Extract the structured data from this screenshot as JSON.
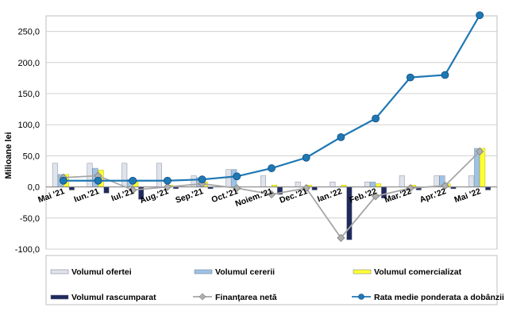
{
  "chart_data": {
    "type": "bar",
    "ylabel": "Milioane lei",
    "ylim": [
      -100,
      275
    ],
    "yticks": [
      250.0,
      200.0,
      150.0,
      100.0,
      50.0,
      0.0,
      -50.0,
      -100.0
    ],
    "ytick_labels": [
      "250,0",
      "200,0",
      "150,0",
      "100,0",
      "50,0",
      "0,0",
      "-50,0",
      "-100,0"
    ],
    "grid": true,
    "legend_position": "bottom",
    "categories": [
      "Mai '21",
      "Iun.'21",
      "Iul.'21",
      "Aug.'21",
      "Sep.'21",
      "Oct.'21",
      "Noiem.'21",
      "Dec.'21",
      "Ian.'22",
      "Feb.'22",
      "Mar.'22",
      "Apr.'22",
      "Mai '22"
    ],
    "series": [
      {
        "name": "Volumul ofertei",
        "type": "bar",
        "color": "#dfe3ec",
        "values": [
          38,
          38,
          38,
          38,
          18,
          28,
          18,
          8,
          8,
          8,
          18,
          18,
          18
        ]
      },
      {
        "name": "Volumul cererii",
        "type": "bar",
        "color": "#9dc3e6",
        "values": [
          20,
          30,
          12,
          0,
          15,
          28,
          0,
          0,
          0,
          8,
          0,
          18,
          62
        ]
      },
      {
        "name": "Volumul comercializat",
        "type": "bar",
        "color": "#ffff33",
        "values": [
          20,
          27,
          8,
          3,
          8,
          0,
          3,
          3,
          3,
          5,
          3,
          5,
          62
        ]
      },
      {
        "name": "Volumul rascumparat",
        "type": "bar",
        "color": "#1f2a5c",
        "values": [
          -5,
          -10,
          -20,
          -3,
          -3,
          0,
          -12,
          -5,
          -85,
          -18,
          -5,
          -3,
          -5
        ]
      },
      {
        "name": "Finanţarea netă",
        "type": "line",
        "color": "#a6a6a6",
        "values": [
          15,
          18,
          -5,
          0,
          5,
          -2,
          -12,
          -2,
          -82,
          -15,
          -2,
          2,
          57
        ]
      },
      {
        "name": "Rata medie ponderata a dobânzii",
        "type": "line",
        "color": "#1f78b4",
        "values": [
          10,
          10,
          10,
          10,
          12,
          17,
          30,
          47,
          80,
          110,
          176,
          180,
          276
        ]
      }
    ]
  }
}
